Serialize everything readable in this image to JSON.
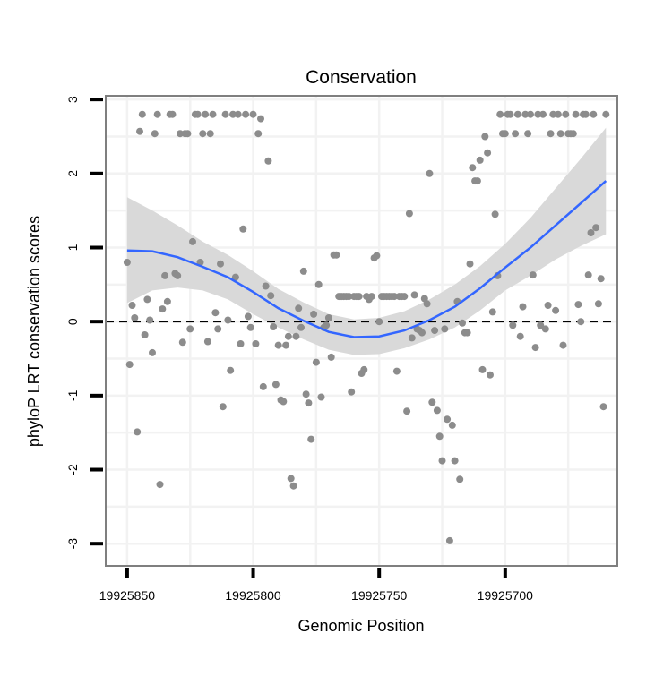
{
  "chart_data": {
    "type": "scatter",
    "title": "Conservation",
    "xlabel": "Genomic Position",
    "ylabel": "phyloP LRT conservation scores",
    "x_reversed": true,
    "xlim": [
      19925858.5,
      19925655.5
    ],
    "ylim": [
      -3.3,
      3.05
    ],
    "x_ticks": [
      19925850,
      19925800,
      19925750,
      19925700
    ],
    "x_tick_labels": [
      "19925850",
      "19925800",
      "19925750",
      "19925700"
    ],
    "y_ticks": [
      3,
      2,
      1,
      0,
      -1,
      -2,
      -3
    ],
    "y_tick_labels": [
      "3",
      "2",
      "1",
      "0",
      "-1",
      "-2",
      "-3"
    ],
    "reference_line": {
      "y": 0,
      "style": "dashed"
    },
    "colors": {
      "points": "#8c8c8c",
      "smooth": "#3366ff",
      "ribbon": "#d9d9d9",
      "panel_border": "#7f7f7f",
      "grid": "#f2f2f2"
    },
    "points": [
      [
        19925850,
        0.8
      ],
      [
        19925849,
        -0.58
      ],
      [
        19925848,
        0.22
      ],
      [
        19925847,
        0.05
      ],
      [
        19925846,
        -1.49
      ],
      [
        19925845,
        2.57
      ],
      [
        19925844,
        2.8
      ],
      [
        19925843,
        -0.18
      ],
      [
        19925842,
        0.3
      ],
      [
        19925841,
        0.02
      ],
      [
        19925840,
        -0.42
      ],
      [
        19925839,
        2.54
      ],
      [
        19925838,
        2.8
      ],
      [
        19925837,
        -2.2
      ],
      [
        19925836,
        0.17
      ],
      [
        19925835,
        0.62
      ],
      [
        19925834,
        0.27
      ],
      [
        19925833,
        2.8
      ],
      [
        19925832,
        2.8
      ],
      [
        19925831,
        0.65
      ],
      [
        19925830,
        0.62
      ],
      [
        19925829,
        2.54
      ],
      [
        19925828,
        -0.28
      ],
      [
        19925827,
        2.54
      ],
      [
        19925826,
        2.54
      ],
      [
        19925825,
        -0.1
      ],
      [
        19925824,
        1.08
      ],
      [
        19925823,
        2.8
      ],
      [
        19925822,
        2.8
      ],
      [
        19925821,
        0.8
      ],
      [
        19925820,
        2.54
      ],
      [
        19925819,
        2.8
      ],
      [
        19925818,
        -0.27
      ],
      [
        19925817,
        2.54
      ],
      [
        19925816,
        2.8
      ],
      [
        19925815,
        0.12
      ],
      [
        19925814,
        -0.1
      ],
      [
        19925813,
        0.78
      ],
      [
        19925812,
        -1.15
      ],
      [
        19925811,
        2.8
      ],
      [
        19925810,
        0.02
      ],
      [
        19925809,
        -0.66
      ],
      [
        19925808,
        2.8
      ],
      [
        19925807,
        0.6
      ],
      [
        19925806,
        2.8
      ],
      [
        19925805,
        -0.3
      ],
      [
        19925804,
        1.25
      ],
      [
        19925803,
        2.8
      ],
      [
        19925802,
        0.07
      ],
      [
        19925801,
        -0.08
      ],
      [
        19925800,
        2.8
      ],
      [
        19925799,
        -0.3
      ],
      [
        19925798,
        2.54
      ],
      [
        19925797,
        2.74
      ],
      [
        19925796,
        -0.88
      ],
      [
        19925795,
        0.48
      ],
      [
        19925794,
        2.17
      ],
      [
        19925793,
        0.35
      ],
      [
        19925792,
        -0.07
      ],
      [
        19925791,
        -0.85
      ],
      [
        19925790,
        -0.32
      ],
      [
        19925789,
        -1.06
      ],
      [
        19925788,
        -1.08
      ],
      [
        19925787,
        -0.32
      ],
      [
        19925786,
        -0.2
      ],
      [
        19925785,
        -2.12
      ],
      [
        19925784,
        -2.22
      ],
      [
        19925783,
        -0.2
      ],
      [
        19925782,
        0.18
      ],
      [
        19925781,
        -0.08
      ],
      [
        19925780,
        0.68
      ],
      [
        19925779,
        -0.98
      ],
      [
        19925778,
        -1.1
      ],
      [
        19925777,
        -1.59
      ],
      [
        19925776,
        0.1
      ],
      [
        19925775,
        -0.55
      ],
      [
        19925774,
        0.5
      ],
      [
        19925773,
        -1.02
      ],
      [
        19925772,
        -0.08
      ],
      [
        19925771,
        -0.05
      ],
      [
        19925770,
        0.05
      ],
      [
        19925769,
        -0.48
      ],
      [
        19925768,
        0.9
      ],
      [
        19925767,
        0.9
      ],
      [
        19925766,
        0.34
      ],
      [
        19925765,
        0.34
      ],
      [
        19925764,
        0.34
      ],
      [
        19925763,
        0.34
      ],
      [
        19925762,
        0.34
      ],
      [
        19925761,
        -0.95
      ],
      [
        19925760,
        0.34
      ],
      [
        19925759,
        0.34
      ],
      [
        19925758,
        0.34
      ],
      [
        19925757,
        -0.7
      ],
      [
        19925756,
        -0.65
      ],
      [
        19925755,
        0.34
      ],
      [
        19925754,
        0.3
      ],
      [
        19925753,
        0.34
      ],
      [
        19925752,
        0.86
      ],
      [
        19925751,
        0.89
      ],
      [
        19925750,
        0.0
      ],
      [
        19925749,
        0.34
      ],
      [
        19925748,
        0.34
      ],
      [
        19925747,
        0.34
      ],
      [
        19925746,
        0.34
      ],
      [
        19925745,
        0.34
      ],
      [
        19925744,
        0.34
      ],
      [
        19925743,
        -0.67
      ],
      [
        19925742,
        0.34
      ],
      [
        19925741,
        0.34
      ],
      [
        19925740,
        0.34
      ],
      [
        19925739,
        -1.21
      ],
      [
        19925738,
        1.46
      ],
      [
        19925737,
        -0.22
      ],
      [
        19925736,
        0.36
      ],
      [
        19925735,
        -0.1
      ],
      [
        19925734,
        -0.12
      ],
      [
        19925733,
        -0.15
      ],
      [
        19925732,
        0.31
      ],
      [
        19925731,
        0.24
      ],
      [
        19925730,
        2.0
      ],
      [
        19925729,
        -1.09
      ],
      [
        19925728,
        -0.12
      ],
      [
        19925727,
        -1.2
      ],
      [
        19925726,
        -1.55
      ],
      [
        19925725,
        -1.88
      ],
      [
        19925724,
        -0.1
      ],
      [
        19925723,
        -1.32
      ],
      [
        19925722,
        -2.96
      ],
      [
        19925721,
        -1.4
      ],
      [
        19925720,
        -1.88
      ],
      [
        19925719,
        0.27
      ],
      [
        19925718,
        -2.13
      ],
      [
        19925717,
        -0.02
      ],
      [
        19925716,
        -0.15
      ],
      [
        19925715,
        -0.15
      ],
      [
        19925714,
        0.78
      ],
      [
        19925713,
        2.08
      ],
      [
        19925712,
        1.9
      ],
      [
        19925711,
        1.9
      ],
      [
        19925710,
        2.18
      ],
      [
        19925709,
        -0.65
      ],
      [
        19925708,
        2.5
      ],
      [
        19925707,
        2.28
      ],
      [
        19925706,
        -0.72
      ],
      [
        19925705,
        0.13
      ],
      [
        19925704,
        1.45
      ],
      [
        19925703,
        0.62
      ],
      [
        19925702,
        2.8
      ],
      [
        19925701,
        2.54
      ],
      [
        19925700,
        2.54
      ],
      [
        19925699,
        2.8
      ],
      [
        19925698,
        2.8
      ],
      [
        19925697,
        -0.05
      ],
      [
        19925696,
        2.54
      ],
      [
        19925695,
        2.8
      ],
      [
        19925694,
        -0.2
      ],
      [
        19925693,
        0.2
      ],
      [
        19925692,
        2.8
      ],
      [
        19925691,
        2.54
      ],
      [
        19925690,
        2.8
      ],
      [
        19925689,
        0.63
      ],
      [
        19925688,
        -0.35
      ],
      [
        19925687,
        2.8
      ],
      [
        19925686,
        -0.05
      ],
      [
        19925685,
        2.8
      ],
      [
        19925684,
        -0.1
      ],
      [
        19925683,
        0.22
      ],
      [
        19925682,
        2.54
      ],
      [
        19925681,
        2.8
      ],
      [
        19925680,
        0.15
      ],
      [
        19925679,
        2.8
      ],
      [
        19925678,
        2.54
      ],
      [
        19925677,
        -0.32
      ],
      [
        19925676,
        2.8
      ],
      [
        19925675,
        2.54
      ],
      [
        19925674,
        2.54
      ],
      [
        19925673,
        2.54
      ],
      [
        19925672,
        2.8
      ],
      [
        19925671,
        0.23
      ],
      [
        19925670,
        0.0
      ],
      [
        19925669,
        2.8
      ],
      [
        19925668,
        2.8
      ],
      [
        19925667,
        0.63
      ],
      [
        19925666,
        1.2
      ],
      [
        19925665,
        2.8
      ],
      [
        19925664,
        1.27
      ],
      [
        19925663,
        0.24
      ],
      [
        19925662,
        0.58
      ],
      [
        19925661,
        -1.15
      ],
      [
        19925660,
        2.8
      ]
    ],
    "smooth_line": [
      [
        19925850,
        0.96
      ],
      [
        19925840,
        0.95
      ],
      [
        19925830,
        0.87
      ],
      [
        19925820,
        0.74
      ],
      [
        19925810,
        0.6
      ],
      [
        19925800,
        0.4
      ],
      [
        19925790,
        0.18
      ],
      [
        19925780,
        0.01
      ],
      [
        19925770,
        -0.14
      ],
      [
        19925760,
        -0.21
      ],
      [
        19925750,
        -0.2
      ],
      [
        19925740,
        -0.12
      ],
      [
        19925730,
        0.02
      ],
      [
        19925720,
        0.2
      ],
      [
        19925710,
        0.45
      ],
      [
        19925700,
        0.73
      ],
      [
        19925690,
        1.0
      ],
      [
        19925680,
        1.3
      ],
      [
        19925670,
        1.6
      ],
      [
        19925660,
        1.9
      ]
    ],
    "ribbon": {
      "upper": [
        [
          19925850,
          1.68
        ],
        [
          19925840,
          1.5
        ],
        [
          19925830,
          1.3
        ],
        [
          19925820,
          1.08
        ],
        [
          19925810,
          0.9
        ],
        [
          19925800,
          0.68
        ],
        [
          19925790,
          0.44
        ],
        [
          19925780,
          0.26
        ],
        [
          19925770,
          0.1
        ],
        [
          19925760,
          0.03
        ],
        [
          19925750,
          0.05
        ],
        [
          19925740,
          0.14
        ],
        [
          19925730,
          0.3
        ],
        [
          19925720,
          0.5
        ],
        [
          19925710,
          0.75
        ],
        [
          19925700,
          1.05
        ],
        [
          19925690,
          1.4
        ],
        [
          19925680,
          1.8
        ],
        [
          19925670,
          2.2
        ],
        [
          19925660,
          2.62
        ]
      ],
      "lower": [
        [
          19925850,
          0.25
        ],
        [
          19925840,
          0.42
        ],
        [
          19925830,
          0.46
        ],
        [
          19925820,
          0.42
        ],
        [
          19925810,
          0.3
        ],
        [
          19925800,
          0.1
        ],
        [
          19925790,
          -0.08
        ],
        [
          19925780,
          -0.24
        ],
        [
          19925770,
          -0.38
        ],
        [
          19925760,
          -0.45
        ],
        [
          19925750,
          -0.44
        ],
        [
          19925740,
          -0.36
        ],
        [
          19925730,
          -0.24
        ],
        [
          19925720,
          -0.08
        ],
        [
          19925710,
          0.15
        ],
        [
          19925700,
          0.42
        ],
        [
          19925690,
          0.62
        ],
        [
          19925680,
          0.84
        ],
        [
          19925670,
          1.02
        ],
        [
          19925660,
          1.18
        ]
      ]
    }
  }
}
